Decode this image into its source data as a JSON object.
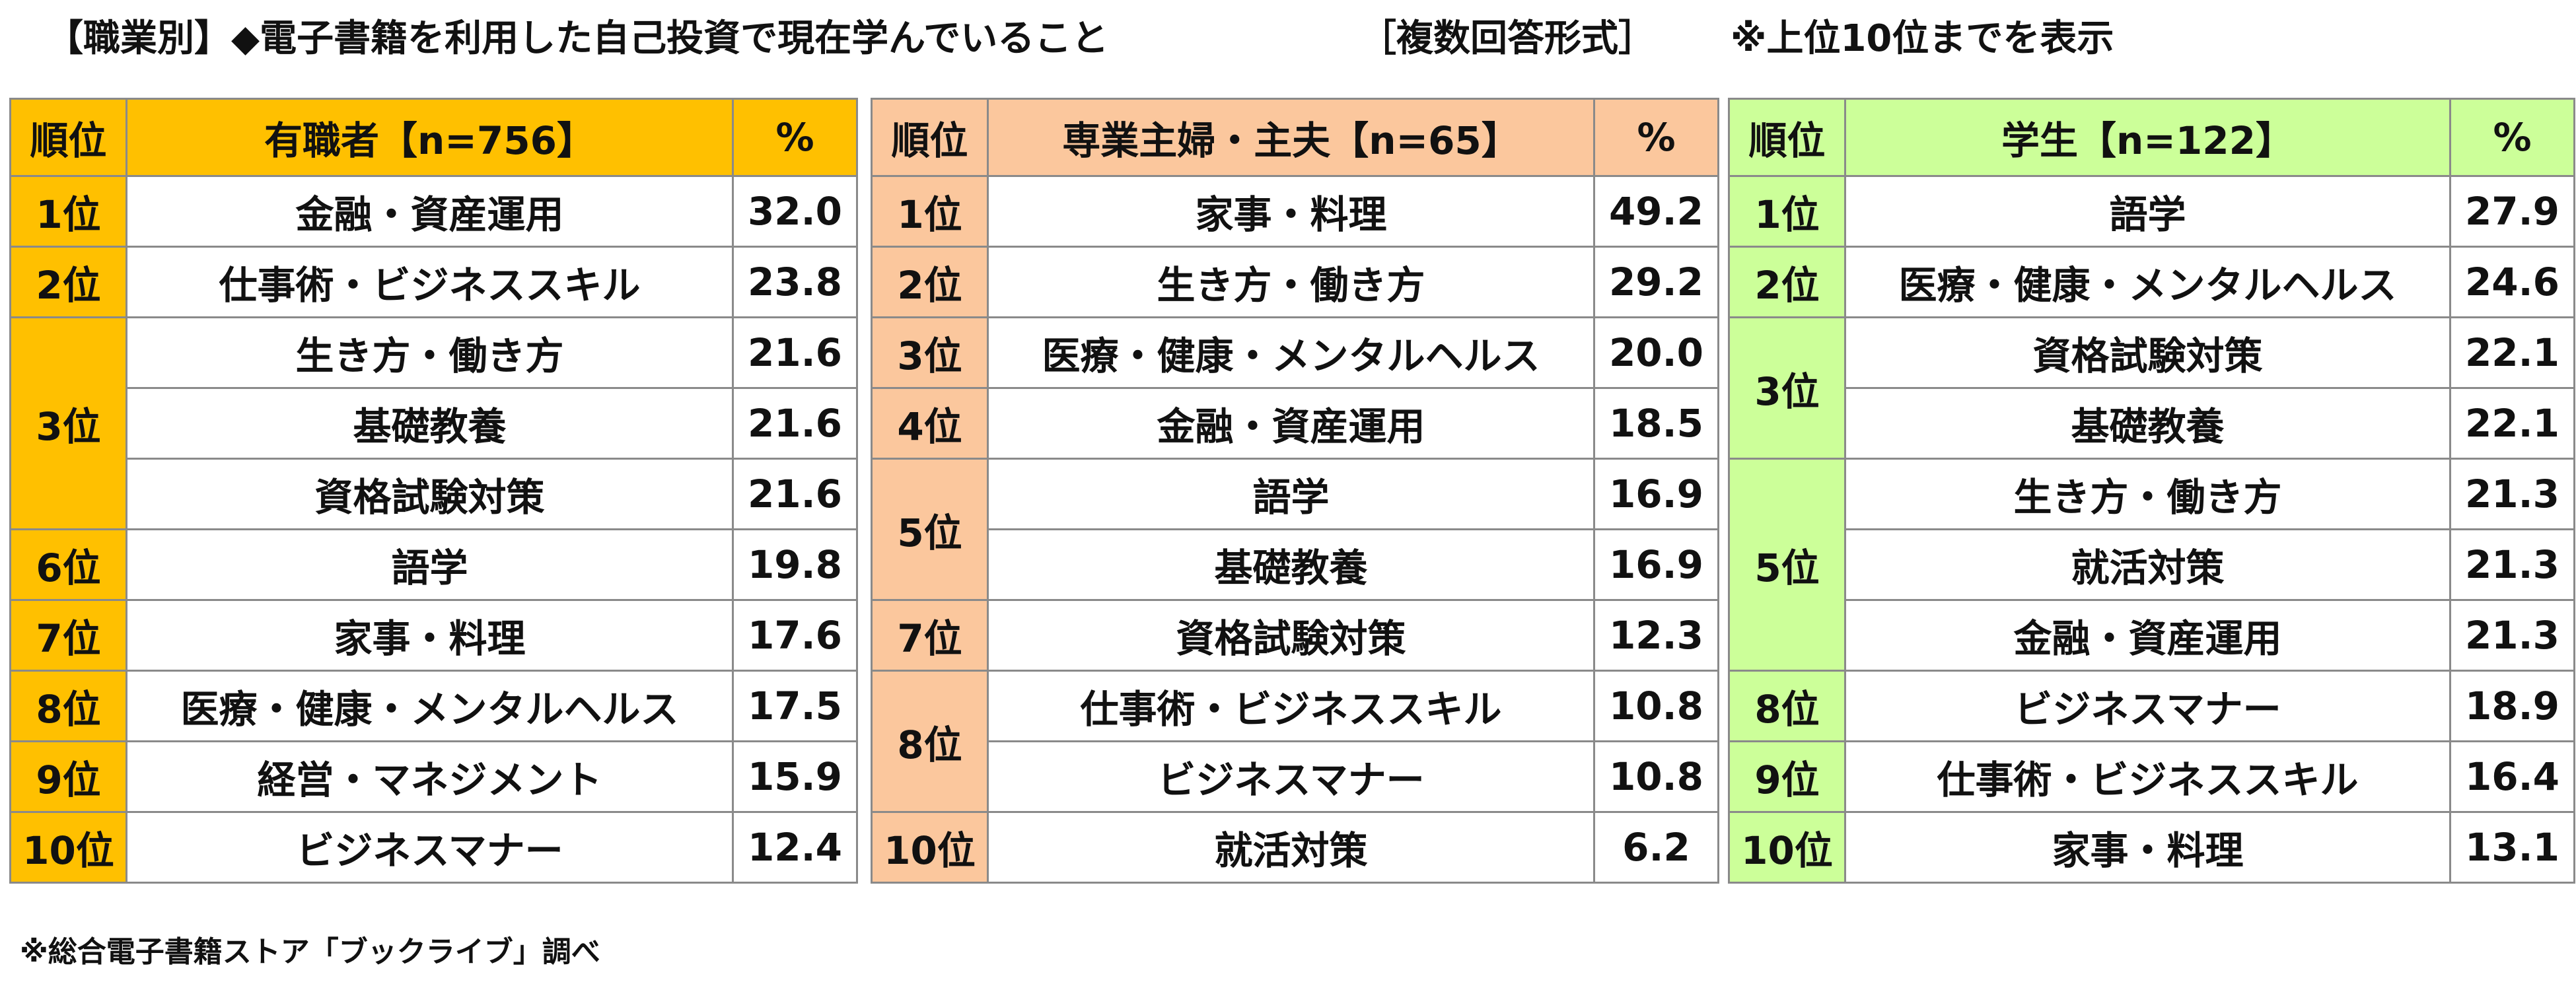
{
  "header": {
    "title": "【職業別】◆電子書籍を利用した自己投資で現在学んでいること",
    "format": "［複数回答形式］",
    "note": "※上位10位までを表示"
  },
  "footer": {
    "source": "※総合電子書籍ストア「ブックライブ」調べ"
  },
  "colors": {
    "worker": "#ffc000",
    "homemaker": "#fbc79d",
    "student": "#ccff99",
    "border": "#8a8a8a"
  },
  "tables": {
    "worker": {
      "rank_header": "順位",
      "group_header": "有職者【n=756】",
      "pct_header": "%",
      "rows": [
        {
          "rank": "1位",
          "item": "金融・資産運用",
          "pct": "32.0"
        },
        {
          "rank": "2位",
          "item": "仕事術・ビジネススキル",
          "pct": "23.8"
        },
        {
          "rank": "3位",
          "item": "生き方・働き方",
          "pct": "21.6"
        },
        {
          "rank": "",
          "item": "基礎教養",
          "pct": "21.6"
        },
        {
          "rank": "",
          "item": "資格試験対策",
          "pct": "21.6"
        },
        {
          "rank": "6位",
          "item": "語学",
          "pct": "19.8"
        },
        {
          "rank": "7位",
          "item": "家事・料理",
          "pct": "17.6"
        },
        {
          "rank": "8位",
          "item": "医療・健康・メンタルヘルス",
          "pct": "17.5"
        },
        {
          "rank": "9位",
          "item": "経営・マネジメント",
          "pct": "15.9"
        },
        {
          "rank": "10位",
          "item": "ビジネスマナー",
          "pct": "12.4"
        }
      ]
    },
    "homemaker": {
      "rank_header": "順位",
      "group_header": "専業主婦・主夫【n=65】",
      "pct_header": "%",
      "rows": [
        {
          "rank": "1位",
          "item": "家事・料理",
          "pct": "49.2"
        },
        {
          "rank": "2位",
          "item": "生き方・働き方",
          "pct": "29.2"
        },
        {
          "rank": "3位",
          "item": "医療・健康・メンタルヘルス",
          "pct": "20.0"
        },
        {
          "rank": "4位",
          "item": "金融・資産運用",
          "pct": "18.5"
        },
        {
          "rank": "5位",
          "item": "語学",
          "pct": "16.9"
        },
        {
          "rank": "",
          "item": "基礎教養",
          "pct": "16.9"
        },
        {
          "rank": "7位",
          "item": "資格試験対策",
          "pct": "12.3"
        },
        {
          "rank": "8位",
          "item": "仕事術・ビジネススキル",
          "pct": "10.8"
        },
        {
          "rank": "",
          "item": "ビジネスマナー",
          "pct": "10.8"
        },
        {
          "rank": "10位",
          "item": "就活対策",
          "pct": "6.2"
        }
      ]
    },
    "student": {
      "rank_header": "順位",
      "group_header": "学生【n=122】",
      "pct_header": "%",
      "rows": [
        {
          "rank": "1位",
          "item": "語学",
          "pct": "27.9"
        },
        {
          "rank": "2位",
          "item": "医療・健康・メンタルヘルス",
          "pct": "24.6"
        },
        {
          "rank": "3位",
          "item": "資格試験対策",
          "pct": "22.1"
        },
        {
          "rank": "",
          "item": "基礎教養",
          "pct": "22.1"
        },
        {
          "rank": "5位",
          "item": "生き方・働き方",
          "pct": "21.3"
        },
        {
          "rank": "",
          "item": "就活対策",
          "pct": "21.3"
        },
        {
          "rank": "",
          "item": "金融・資産運用",
          "pct": "21.3"
        },
        {
          "rank": "8位",
          "item": "ビジネスマナー",
          "pct": "18.9"
        },
        {
          "rank": "9位",
          "item": "仕事術・ビジネススキル",
          "pct": "16.4"
        },
        {
          "rank": "10位",
          "item": "家事・料理",
          "pct": "13.1"
        }
      ]
    }
  }
}
